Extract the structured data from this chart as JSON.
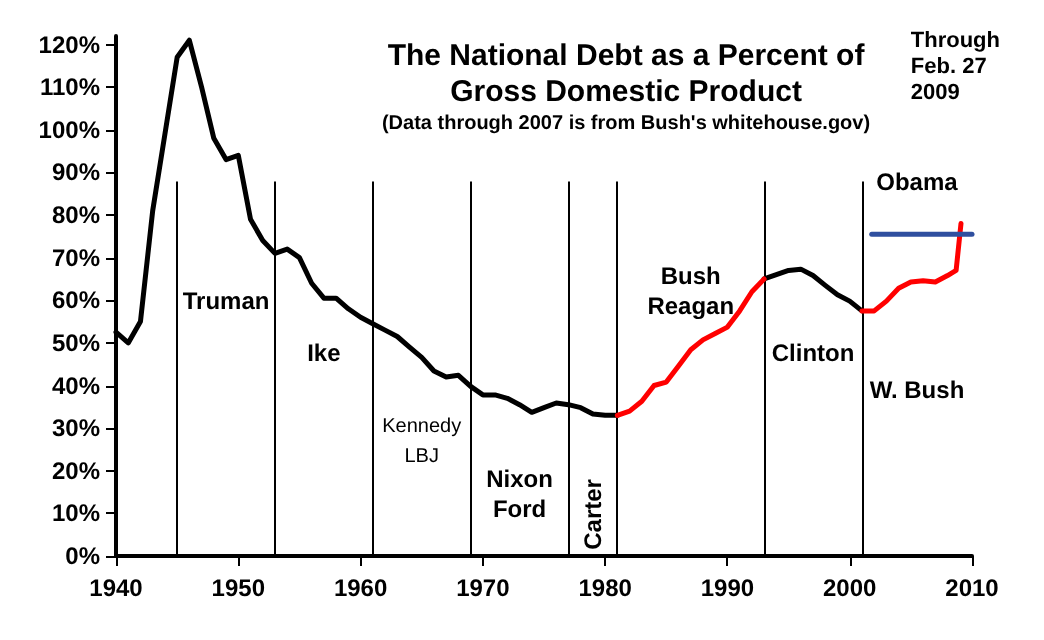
{
  "chart_data": {
    "type": "line",
    "title": "The National Debt as a Percent of\nGross Domestic Product",
    "subtitle": "(Data through 2007 is from Bush's whitehouse.gov)",
    "series": [
      {
        "color": "#000000",
        "x": [
          1940,
          1941,
          1942,
          1943,
          1944,
          1945,
          1946,
          1947,
          1948,
          1949,
          1950,
          1951,
          1952,
          1953,
          1954,
          1955,
          1956,
          1957,
          1958,
          1959,
          1960,
          1961,
          1962,
          1963,
          1964,
          1965,
          1966,
          1967,
          1968,
          1969,
          1970,
          1971,
          1972,
          1973,
          1974,
          1975,
          1976,
          1977,
          1978,
          1979,
          1980,
          1981,
          1987,
          1993,
          1994,
          1995,
          1996,
          1997,
          1998,
          1999,
          2000,
          2001
        ],
        "values": [
          52.5,
          50,
          55,
          81,
          99,
          117,
          121,
          110,
          98,
          93,
          94,
          79,
          74,
          71,
          72,
          70,
          64,
          60.5,
          60.5,
          58,
          56,
          54.5,
          53,
          51.5,
          49,
          46.6,
          43.4,
          42,
          42.4,
          39.8,
          37.8,
          37.8,
          37,
          35.5,
          33.7,
          34.8,
          35.9,
          35.5,
          34.8,
          33.3,
          33,
          33,
          null,
          65,
          66,
          67,
          67.3,
          65.8,
          63.5,
          61.3,
          59.8,
          57.5
        ]
      },
      {
        "color": "#ff0000",
        "x": [
          1981,
          1982,
          1983,
          1984,
          1985,
          1986,
          1987,
          1988,
          1989,
          1990,
          1991,
          1992,
          1993,
          1997,
          2001,
          2002,
          2003,
          2004,
          2005,
          2006,
          2007,
          2008,
          2008.7,
          2009.1
        ],
        "values": [
          33,
          34,
          36.3,
          40,
          40.8,
          44.6,
          48.4,
          50.7,
          52.2,
          53.7,
          57.5,
          62,
          65,
          null,
          57.5,
          57.5,
          59.8,
          62.8,
          64.3,
          64.6,
          64.3,
          65.8,
          67,
          78
        ]
      },
      {
        "color": "#2f4f9f",
        "x": [
          2001.8,
          2010
        ],
        "values": [
          75.5,
          75.5
        ]
      }
    ],
    "xlim": [
      1940,
      2010
    ],
    "xticks": [
      1940,
      1950,
      1960,
      1970,
      1980,
      1990,
      2000,
      2010
    ],
    "ylim": [
      0,
      122
    ],
    "yticks": [
      {
        "value": 0,
        "label": "0%"
      },
      {
        "value": 10,
        "label": "10%"
      },
      {
        "value": 20,
        "label": "20%"
      },
      {
        "value": 30,
        "label": "30%"
      },
      {
        "value": 40,
        "label": "40%"
      },
      {
        "value": 50,
        "label": "50%"
      },
      {
        "value": 60,
        "label": "60%"
      },
      {
        "value": 70,
        "label": "70%"
      },
      {
        "value": 80,
        "label": "80%"
      },
      {
        "value": 90,
        "label": "90%"
      },
      {
        "value": 100,
        "label": "100%"
      },
      {
        "value": 110,
        "label": "110%"
      },
      {
        "value": 120,
        "label": "120%"
      }
    ],
    "grid": false,
    "marker": "none",
    "line_style": "solid",
    "ref_lines": [
      {
        "axis": "x",
        "value": 1945,
        "color": "#000000"
      },
      {
        "axis": "x",
        "value": 1953,
        "color": "#000000"
      },
      {
        "axis": "x",
        "value": 1961,
        "color": "#000000"
      },
      {
        "axis": "x",
        "value": 1969,
        "color": "#000000"
      },
      {
        "axis": "x",
        "value": 1977,
        "color": "#000000"
      },
      {
        "axis": "x",
        "value": 1981,
        "color": "#000000"
      },
      {
        "axis": "x",
        "value": 1993,
        "color": "#000000"
      },
      {
        "axis": "x",
        "value": 2001,
        "color": "#000000"
      }
    ],
    "annotations": [
      "Through\nFeb. 27\n2009",
      "Truman",
      "Ike",
      "Kennedy\nLBJ",
      "Nixon\nFord",
      "Carter",
      "Bush\nReagan",
      "Clinton",
      "W. Bush",
      "Obama"
    ]
  }
}
